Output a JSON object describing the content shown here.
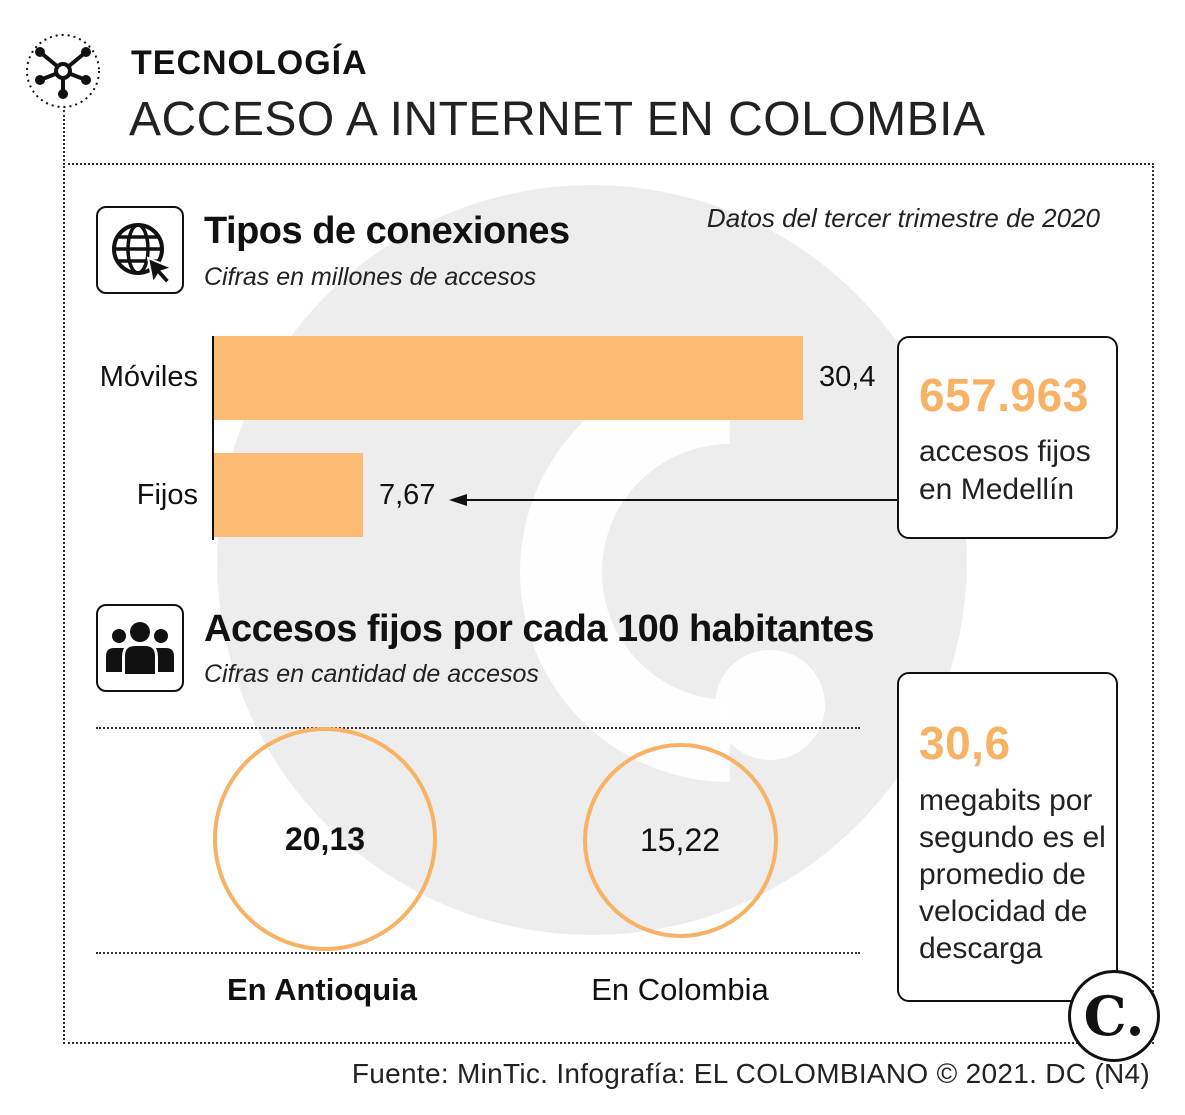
{
  "header": {
    "kicker": "TECNOLOGÍA",
    "title": "ACCESO A INTERNET EN COLOMBIA",
    "period_note": "Datos del tercer trimestre de 2020"
  },
  "section_connections": {
    "title": "Tipos de conexiones",
    "subtitle": "Cifras en millones de accesos",
    "icon": "globe-cursor-icon"
  },
  "section_per100": {
    "title": "Accesos fijos por cada 100 habitantes",
    "subtitle": "Cifras en cantidad de accesos",
    "icon": "people-group-icon"
  },
  "chart_data": [
    {
      "type": "bar",
      "orientation": "horizontal",
      "title": "Tipos de conexiones",
      "subtitle": "Cifras en millones de accesos",
      "categories": [
        "Móviles",
        "Fijos"
      ],
      "values": [
        30.4,
        7.67
      ],
      "value_labels": [
        "30,4",
        "7,67"
      ],
      "xlim": [
        0,
        30.4
      ],
      "color": "#fbbb72",
      "grid": false
    },
    {
      "type": "bubble",
      "title": "Accesos fijos por cada 100 habitantes",
      "subtitle": "Cifras en cantidad de accesos",
      "categories": [
        "En Antioquia",
        "En Colombia"
      ],
      "values": [
        20.13,
        15.22
      ],
      "value_labels": [
        "20,13",
        "15,22"
      ],
      "color": "#f7b266"
    }
  ],
  "callouts": {
    "medellin": {
      "number": "657.963",
      "text_line1": "accesos fijos",
      "text_line2": "en Medellín"
    },
    "speed": {
      "number": "30,6",
      "lines": [
        "megabits por",
        "segundo es el",
        "promedio de",
        "velocidad de",
        "descarga"
      ]
    }
  },
  "footer": {
    "source": "Fuente: MinTic. Infografía: EL COLOMBIANO © 2021. DC (N4)",
    "logo_text": "C."
  },
  "colors": {
    "accent": "#f7b266",
    "bar": "#fbbb72",
    "watermark": "#ececec"
  }
}
